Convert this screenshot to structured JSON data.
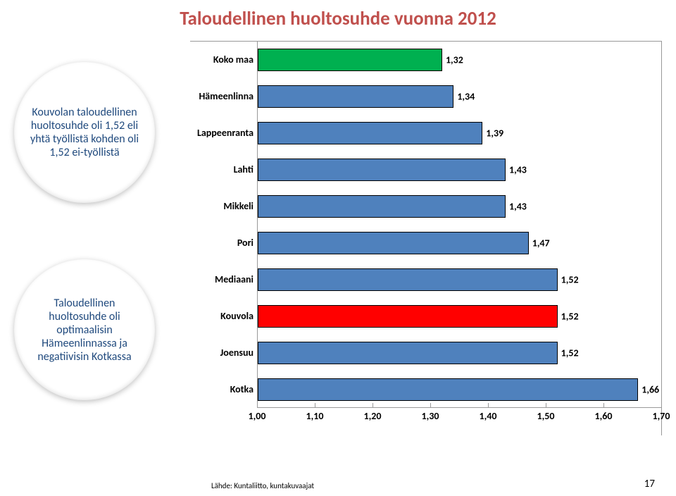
{
  "title": "Taloudellinen huoltosuhde vuonna 2012",
  "title_color": "#c0504d",
  "title_fontsize": 27,
  "circle1": {
    "text": "Kouvolan taloudellinen huoltosuhde oli 1,52 eli yhtä työllistä kohden oli 1,52 ei-työllistä",
    "color": "#1f497d",
    "fontsize": 16
  },
  "circle2": {
    "text": "Taloudellinen huoltosuhde oli optimaalisin Hämeenlinnassa ja negatiivisin Kotkassa",
    "color": "#1f497d",
    "fontsize": 16
  },
  "chart": {
    "type": "bar",
    "orientation": "horizontal",
    "xlim": [
      1.0,
      1.7
    ],
    "xtick_step": 0.1,
    "xticks": [
      "1,00",
      "1,10",
      "1,20",
      "1,30",
      "1,40",
      "1,50",
      "1,60",
      "1,70"
    ],
    "label_fontsize": 14,
    "value_fontsize": 14,
    "axis_fontsize": 14,
    "default_fill": "#4f81bd",
    "green_fill": "#00b050",
    "red_fill": "#ff0000",
    "border_color": "#000000",
    "axis_color": "#999999",
    "bars": [
      {
        "label": "Koko maa",
        "value": 1.32,
        "text": "1,32",
        "fill": "#00b050"
      },
      {
        "label": "Hämeenlinna",
        "value": 1.34,
        "text": "1,34",
        "fill": "#4f81bd"
      },
      {
        "label": "Lappeenranta",
        "value": 1.39,
        "text": "1,39",
        "fill": "#4f81bd"
      },
      {
        "label": "Lahti",
        "value": 1.43,
        "text": "1,43",
        "fill": "#4f81bd"
      },
      {
        "label": "Mikkeli",
        "value": 1.43,
        "text": "1,43",
        "fill": "#4f81bd"
      },
      {
        "label": "Pori",
        "value": 1.47,
        "text": "1,47",
        "fill": "#4f81bd"
      },
      {
        "label": "Mediaani",
        "value": 1.52,
        "text": "1,52",
        "fill": "#4f81bd"
      },
      {
        "label": "Kouvola",
        "value": 1.52,
        "text": "1,52",
        "fill": "#ff0000"
      },
      {
        "label": "Joensuu",
        "value": 1.52,
        "text": "1,52",
        "fill": "#4f81bd"
      },
      {
        "label": "Kotka",
        "value": 1.66,
        "text": "1,66",
        "fill": "#4f81bd"
      }
    ]
  },
  "source": "Lähde: Kuntaliitto, kuntakuvaajat",
  "source_fontsize": 11,
  "page_number": "17",
  "page_number_fontsize": 15
}
